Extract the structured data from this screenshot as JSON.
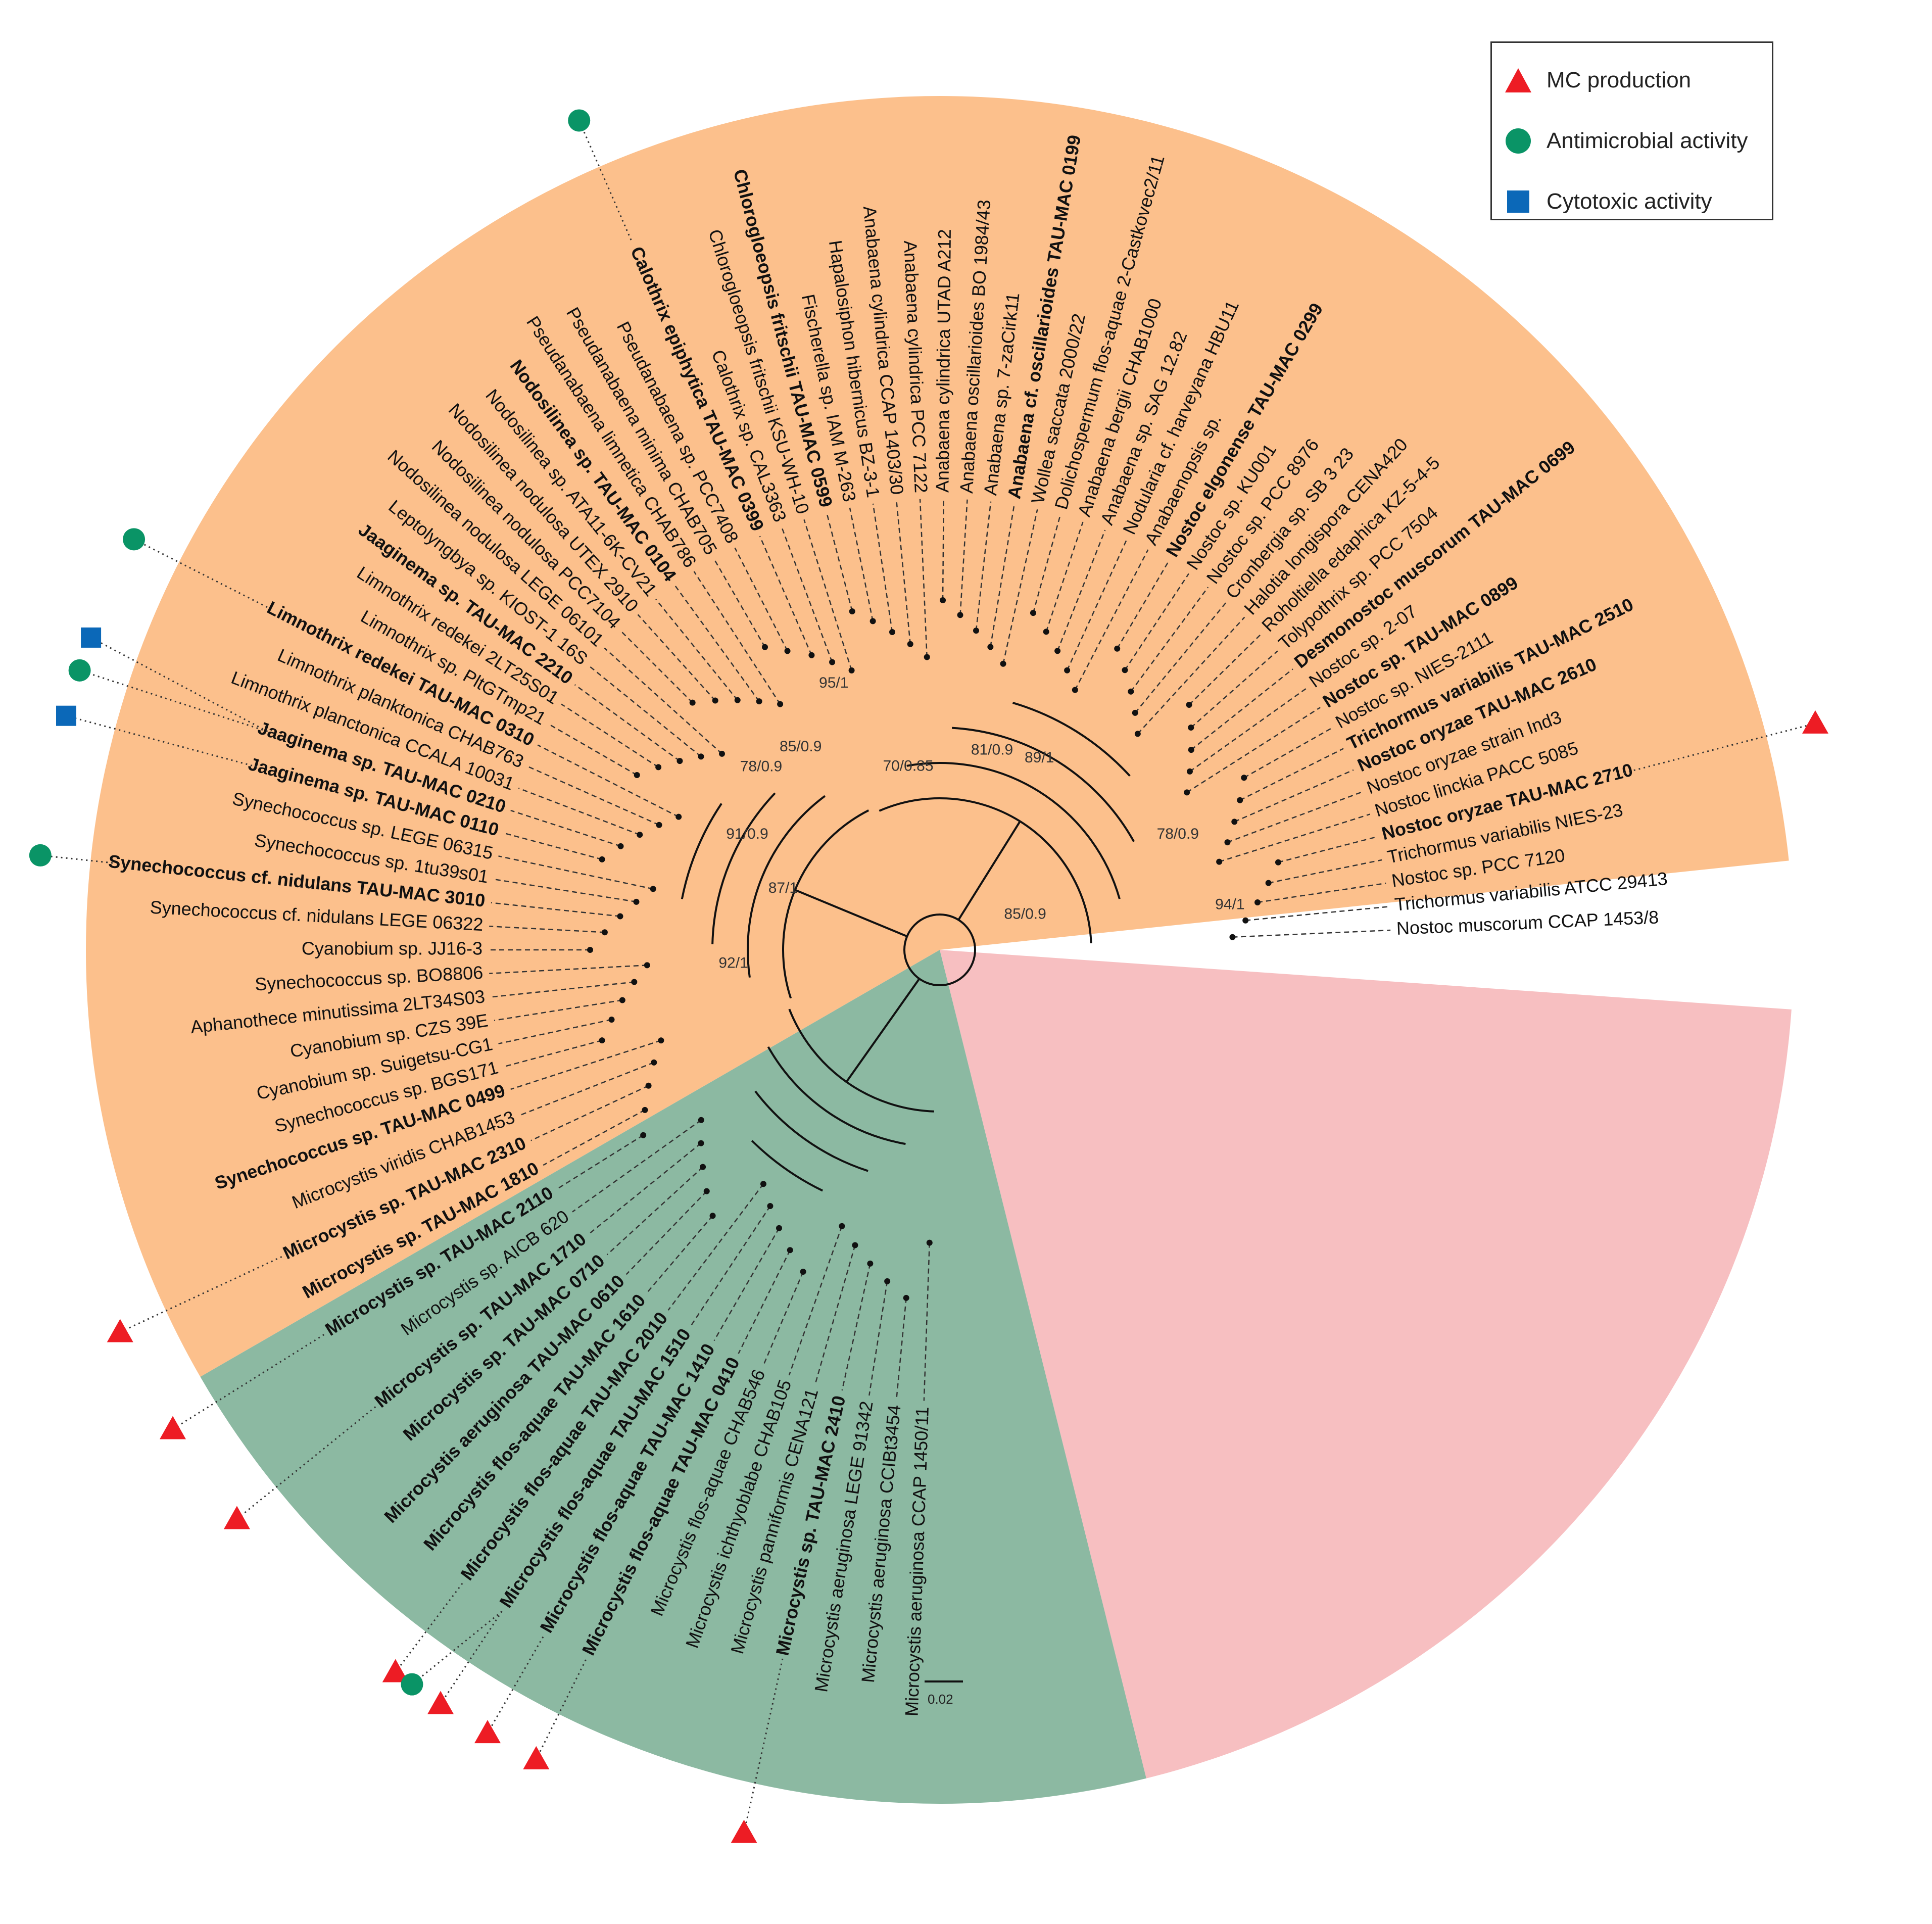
{
  "legend": [
    {
      "label": "MC production",
      "shape": "triangle",
      "color": "#ed1c24"
    },
    {
      "label": "Antimicrobial activity",
      "shape": "circle",
      "color": "#0a9466"
    },
    {
      "label": "Cytotoxic activity",
      "shape": "square",
      "color": "#0b68b8"
    }
  ],
  "scale_label": "0.02",
  "clades": [
    {
      "name": "orange",
      "color": "#fcc08c",
      "start": 150,
      "end": 354
    },
    {
      "name": "pink",
      "color": "#f7bfc1",
      "start": 4,
      "end": 76
    },
    {
      "name": "green",
      "color": "#8cb9a2",
      "start": 76,
      "end": 150
    }
  ],
  "support_labels": [
    "89/1",
    "81/0.9",
    "70/0.85",
    "95/1",
    "78/0.9",
    "94/1",
    "85/0.9",
    "85/0.9",
    "78/0.9",
    "91/0.9",
    "87/1",
    "92/1"
  ],
  "taxa": [
    {
      "label": "Nostoc muscorum CCAP 1453/8",
      "bold": false,
      "angle": -2.5
    },
    {
      "label": "Trichormus variabilis ATCC 29413",
      "bold": false,
      "angle": -5.5
    },
    {
      "label": "Nostoc sp. PCC 7120",
      "bold": false,
      "angle": -8.5
    },
    {
      "label": "Trichormus variabilis NIES-23",
      "bold": false,
      "angle": -11.5
    },
    {
      "label": "Nostoc oryzae TAU-MAC 2710",
      "bold": true,
      "angle": -14.5
    },
    {
      "label": "Nostoc linckia PACC 5085",
      "bold": false,
      "angle": -17.5
    },
    {
      "label": "Nostoc oryzae strain Ind3",
      "bold": false,
      "angle": -20.5
    },
    {
      "label": "Nostoc oryzae TAU-MAC 2610",
      "bold": true,
      "angle": -23.5
    },
    {
      "label": "Trichormus variabilis TAU-MAC 2510",
      "bold": true,
      "angle": -26.5
    },
    {
      "label": "Nostoc sp. NIES-2111",
      "bold": false,
      "angle": -29.5
    },
    {
      "label": "Nostoc sp. TAU-MAC 0899",
      "bold": true,
      "angle": -32.5
    },
    {
      "label": "Nostoc sp. 2-07",
      "bold": false,
      "angle": -35.5
    },
    {
      "label": "Desmonostoc muscorum TAU-MAC 0699",
      "bold": true,
      "angle": -38.5
    },
    {
      "label": "Tolypothrix sp. PCC 7504",
      "bold": false,
      "angle": -41.5
    },
    {
      "label": "Roholtiella edaphica KZ-5-4-5",
      "bold": false,
      "angle": -44.5
    },
    {
      "label": "Halotia longispora CENA420",
      "bold": false,
      "angle": -47.5
    },
    {
      "label": "Cronbergia sp. SB 3 23",
      "bold": false,
      "angle": -50.5
    },
    {
      "label": "Nostoc sp. PCC 8976",
      "bold": false,
      "angle": -53.5
    },
    {
      "label": "Nostoc sp. KU001",
      "bold": false,
      "angle": -56.5
    },
    {
      "label": "Nostoc elgonense TAU-MAC 0299",
      "bold": true,
      "angle": -59.5
    },
    {
      "label": "Anabaenopsis sp.",
      "bold": false,
      "angle": -62.5
    },
    {
      "label": "Nodularia cf. harveyana HBU11",
      "bold": false,
      "angle": -65.5
    },
    {
      "label": "Anabaena sp. SAG 12.82",
      "bold": false,
      "angle": -68.5
    },
    {
      "label": "Anabaena bergii CHAB1000",
      "bold": false,
      "angle": -71.5
    },
    {
      "label": "Dolichospermum flos-aquae 2-Castkovec2/11",
      "bold": false,
      "angle": -74.5
    },
    {
      "label": "Wollea saccata 2000/22",
      "bold": false,
      "angle": -77.5
    },
    {
      "label": "Anabaena cf. oscillarioides TAU-MAC 0199",
      "bold": true,
      "angle": -80.5
    },
    {
      "label": "Anabaena sp. 7-zaCirk11",
      "bold": false,
      "angle": -83.5
    },
    {
      "label": "Anabaena oscillarioides BO 1984/43",
      "bold": false,
      "angle": -86.5
    },
    {
      "label": "Anabaena cylindrica UTAD A212",
      "bold": false,
      "angle": -89.5
    },
    {
      "label": "Anabaena cylindrica PCC 7122",
      "bold": false,
      "angle": -92.5
    },
    {
      "label": "Anabaena cylindrica CCAP 1403/30",
      "bold": false,
      "angle": -95.5
    },
    {
      "label": "Hapalosiphon hibernicus BZ-3-1",
      "bold": false,
      "angle": -98.5
    },
    {
      "label": "Fischerella sp. IAM M-263",
      "bold": false,
      "angle": -101.5
    },
    {
      "label": "Chlorogloeopsis fritschii TAU-MAC 0599",
      "bold": true,
      "angle": -104.5
    },
    {
      "label": "Chlorogloeopsis fritschii KSU-WH-10",
      "bold": false,
      "angle": -107.5
    },
    {
      "label": "Calothrix sp. CAL3363",
      "bold": false,
      "angle": -110.5
    },
    {
      "label": "Calothrix epiphytica TAU-MAC 0399",
      "bold": true,
      "angle": -113.5
    },
    {
      "label": "Pseudanabaena sp. PCC7408",
      "bold": false,
      "angle": -117
    },
    {
      "label": "Pseudanabaena minima CHAB705",
      "bold": false,
      "angle": -120
    },
    {
      "label": "Pseudanabaena limnetica CHAB786",
      "bold": false,
      "angle": -123
    },
    {
      "label": "Nodosilinea sp. TAU-MAC 0104",
      "bold": true,
      "angle": -126
    },
    {
      "label": "Nodosilinea sp. ATA11-6K-CV21",
      "bold": false,
      "angle": -129
    },
    {
      "label": "Nodosilinea nodulosa UTEX 2910",
      "bold": false,
      "angle": -132
    },
    {
      "label": "Nodosilinea nodulosa PCC7104",
      "bold": false,
      "angle": -135
    },
    {
      "label": "Nodosilinea nodulosa LEGE 06101",
      "bold": false,
      "angle": -138
    },
    {
      "label": "Leptolyngbya sp. KIOST-1 16S",
      "bold": false,
      "angle": -141
    },
    {
      "label": "Jaaginema sp. TAU-MAC 2210",
      "bold": true,
      "angle": -144
    },
    {
      "label": "Limnothrix redekei 2LT25S01",
      "bold": false,
      "angle": -147
    },
    {
      "label": "Limnothrix sp. PltGTmp21",
      "bold": false,
      "angle": -150
    },
    {
      "label": "Limnothrix redekei TAU-MAC 0310",
      "bold": true,
      "angle": -153
    },
    {
      "label": "Limnothrix planktonica CHAB763",
      "bold": false,
      "angle": -156
    },
    {
      "label": "Limnothrix planctonica CCALA 10031",
      "bold": false,
      "angle": -159
    },
    {
      "label": "Jaaginema sp. TAU-MAC 0210",
      "bold": true,
      "angle": -162
    },
    {
      "label": "Jaaginema sp. TAU-MAC 0110",
      "bold": true,
      "angle": -165
    },
    {
      "label": "Synechococcus sp. LEGE 06315",
      "bold": false,
      "angle": -168
    },
    {
      "label": "Synechococcus sp. 1tu39s01",
      "bold": false,
      "angle": -171
    },
    {
      "label": "Synechococcus cf. nidulans TAU-MAC 3010",
      "bold": true,
      "angle": -174
    },
    {
      "label": "Synechococcus cf. nidulans LEGE 06322",
      "bold": false,
      "angle": -177
    },
    {
      "label": "Cyanobium sp. JJ16-3",
      "bold": false,
      "angle": -180
    },
    {
      "label": "Synechococcus sp. BO8806",
      "bold": false,
      "angle": -183
    },
    {
      "label": "Aphanothece minutissima 2LT34S03",
      "bold": false,
      "angle": -186
    },
    {
      "label": "Cyanobium sp. CZS 39E",
      "bold": false,
      "angle": -189
    },
    {
      "label": "Cyanobium sp. Suigetsu-CG1",
      "bold": false,
      "angle": -192
    },
    {
      "label": "Synechococcus sp. BGS171",
      "bold": false,
      "angle": -195
    },
    {
      "label": "Synechococcus sp. TAU-MAC 0499",
      "bold": true,
      "angle": -198
    },
    {
      "label": "Microcystis viridis CHAB1453",
      "bold": false,
      "angle": -201.5
    },
    {
      "label": "Microcystis sp. TAU-MAC 2310",
      "bold": true,
      "angle": -205
    },
    {
      "label": "Microcystis sp. TAU-MAC 1810",
      "bold": true,
      "angle": -208.5
    },
    {
      "label": "Microcystis sp. TAU-MAC 2110",
      "bold": true,
      "angle": -212
    },
    {
      "label": "Microcystis sp. AICB 620",
      "bold": false,
      "angle": -215.5
    },
    {
      "label": "Microcystis sp. TAU-MAC 1710",
      "bold": true,
      "angle": -219
    },
    {
      "label": "Microcystis sp. TAU-MAC 0710",
      "bold": true,
      "angle": -222.5
    },
    {
      "label": "Microcystis aeruginosa TAU-MAC 0610",
      "bold": true,
      "angle": -226
    },
    {
      "label": "Microcystis flos-aquae TAU-MAC 1610",
      "bold": true,
      "angle": -229.5
    },
    {
      "label": "Microcystis flos-aquae TAU-MAC 2010",
      "bold": true,
      "angle": -233
    },
    {
      "label": "Microcystis flos-aquae TAU-MAC 1510",
      "bold": true,
      "angle": -236.5
    },
    {
      "label": "Microcystis flos-aquae TAU-MAC 1410",
      "bold": true,
      "angle": -240
    },
    {
      "label": "Microcystis flos-aquae TAU-MAC 0410",
      "bold": true,
      "angle": -243.5
    },
    {
      "label": "Microcystis flos-aquae CHAB546",
      "bold": false,
      "angle": -247
    },
    {
      "label": "Microcystis ichthyoblabe CHAB105",
      "bold": false,
      "angle": -250.5
    },
    {
      "label": "Microcystis panniformis CENA121",
      "bold": false,
      "angle": -254
    },
    {
      "label": "Microcystis sp. TAU-MAC 2410",
      "bold": true,
      "angle": -257.5
    },
    {
      "label": "Microcystis aeruginosa LEGE 91342",
      "bold": false,
      "angle": -261
    },
    {
      "label": "Microcystis aeruginosa CCIBt3454",
      "bold": false,
      "angle": -264.5
    },
    {
      "label": "Microcystis aeruginosa CCAP 1450/11",
      "bold": false,
      "angle": -268
    }
  ],
  "activity_markers": [
    {
      "taxon": "Nostoc oryzae TAU-MAC 2710",
      "type": "triangle"
    },
    {
      "taxon": "Calothrix epiphytica TAU-MAC 0399",
      "type": "circle"
    },
    {
      "taxon": "Limnothrix redekei TAU-MAC 0310",
      "type": "circle"
    },
    {
      "taxon": "Jaaginema sp. TAU-MAC 0210",
      "type": "circle"
    },
    {
      "taxon": "Jaaginema sp. TAU-MAC 0210",
      "type": "square"
    },
    {
      "taxon": "Jaaginema sp. TAU-MAC 0110",
      "type": "square"
    },
    {
      "taxon": "Synechococcus cf. nidulans TAU-MAC 3010",
      "type": "circle"
    },
    {
      "taxon": "Microcystis sp. TAU-MAC 2310",
      "type": "triangle"
    },
    {
      "taxon": "Microcystis sp. TAU-MAC 2110",
      "type": "triangle"
    },
    {
      "taxon": "Microcystis sp. TAU-MAC 1710",
      "type": "triangle"
    },
    {
      "taxon": "Microcystis flos-aquae TAU-MAC 2010",
      "type": "triangle"
    },
    {
      "taxon": "Microcystis flos-aquae TAU-MAC 1510",
      "type": "triangle"
    },
    {
      "taxon": "Microcystis flos-aquae TAU-MAC 1510",
      "type": "circle"
    },
    {
      "taxon": "Microcystis flos-aquae TAU-MAC 1410",
      "type": "triangle"
    },
    {
      "taxon": "Microcystis flos-aquae TAU-MAC 0410",
      "type": "triangle"
    },
    {
      "taxon": "Microcystis sp. TAU-MAC 2410",
      "type": "triangle"
    }
  ]
}
